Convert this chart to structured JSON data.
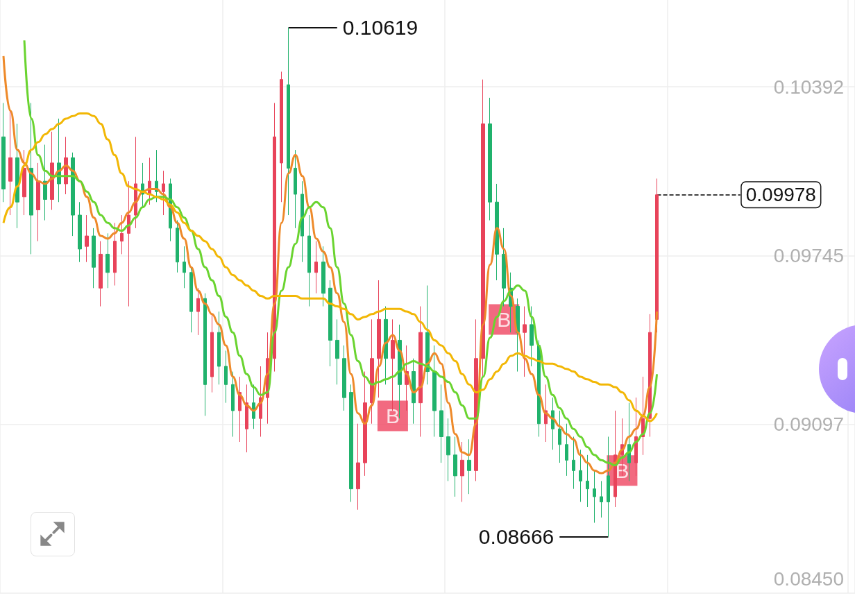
{
  "chart_data": {
    "type": "candlestick",
    "categories": [
      null,
      null,
      null,
      null,
      null,
      null,
      null,
      null,
      null,
      null,
      null,
      null,
      null,
      null,
      null,
      null,
      null,
      null,
      null,
      null,
      null,
      null,
      null,
      null,
      null,
      null,
      null,
      null,
      null,
      null,
      null,
      null,
      null,
      null,
      null,
      null,
      null,
      null,
      null,
      null,
      null,
      null,
      null,
      null,
      null,
      null,
      null,
      null,
      null,
      null,
      null,
      null,
      null,
      null,
      null,
      null,
      null,
      null,
      null,
      null,
      null,
      null,
      null,
      null,
      null,
      null,
      null,
      null,
      null,
      null,
      null,
      null,
      null,
      null,
      null,
      null,
      null,
      null,
      null,
      null,
      null,
      null,
      null,
      null,
      null,
      null,
      null,
      null,
      null,
      null,
      null,
      null,
      null,
      null,
      null
    ],
    "colors": [
      "#20b26c",
      "#e8435a",
      "#20b26c",
      "#e8435a",
      "#20b26c",
      "#e8435a",
      "#20b26c",
      "#e8435a",
      "#20b26c",
      "#e8435a",
      "#20b26c",
      "#20b26c",
      "#e8435a",
      "#20b26c",
      "#e8435a",
      "#20b26c",
      "#e8435a",
      "#e8435a",
      "#e8435a",
      "#e8435a",
      "#20b26c",
      "#e8435a",
      "#20b26c",
      "#e8435a",
      "#20b26c",
      "#20b26c",
      "#20b26c",
      "#20b26c",
      "#e8435a",
      "#20b26c",
      "#e8435a",
      "#20b26c",
      "#20b26c",
      "#20b26c",
      "#e8435a",
      "#e8435a",
      "#20b26c",
      "#e8435a",
      "#e8435a",
      "#e8435a",
      "#e8435a",
      "#20b26c",
      "#20b26c",
      "#20b26c",
      "#20b26c",
      "#e8435a",
      "#20b26c",
      "#20b26c",
      "#20b26c",
      "#20b26c",
      "#20b26c",
      "#e8435a",
      "#e8435a",
      "#e8435a",
      "#e8435a",
      "#20b26c",
      "#e8435a",
      "#20b26c",
      "#e8435a",
      "#20b26c",
      "#e8435a",
      "#20b26c",
      "#20b26c",
      "#20b26c",
      "#20b26c",
      "#20b26c",
      "#e8435a",
      "#20b26c",
      "#e8435a",
      "#e8435a",
      "#20b26c",
      "#20b26c",
      "#20b26c",
      "#20b26c",
      "#20b26c",
      "#e8435a",
      "#20b26c",
      "#20b26c",
      "#e8435a",
      "#20b26c",
      "#20b26c",
      "#20b26c",
      "#20b26c",
      "#20b26c",
      "#20b26c",
      "#20b26c",
      "#20b26c",
      "#20b26c",
      "#e8435a",
      "#e8435a",
      "#20b26c",
      "#e8435a",
      "#e8435a",
      "#e8435a",
      "#e8435a"
    ],
    "ohlc": [
      [
        0.102,
        0.1033,
        0.0995,
        0.1
      ],
      [
        0.1003,
        0.103,
        0.099,
        0.1012
      ],
      [
        0.1012,
        0.1025,
        0.0985,
        0.0995
      ],
      [
        0.0997,
        0.1015,
        0.099,
        0.1008
      ],
      [
        0.1008,
        0.1033,
        0.0975,
        0.099
      ],
      [
        0.0992,
        0.101,
        0.098,
        0.1003
      ],
      [
        0.1003,
        0.1017,
        0.0988,
        0.0996
      ],
      [
        0.0996,
        0.1022,
        0.0992,
        0.101
      ],
      [
        0.101,
        0.1027,
        0.0995,
        0.1002
      ],
      [
        0.1002,
        0.102,
        0.0998,
        0.1012
      ],
      [
        0.1012,
        0.1014,
        0.0982,
        0.099
      ],
      [
        0.099,
        0.0995,
        0.0972,
        0.0977
      ],
      [
        0.0978,
        0.099,
        0.0972,
        0.0982
      ],
      [
        0.0982,
        0.0985,
        0.0962,
        0.097
      ],
      [
        0.0962,
        0.098,
        0.0955,
        0.0975
      ],
      [
        0.0975,
        0.0983,
        0.0962,
        0.0968
      ],
      [
        0.0968,
        0.0987,
        0.0963,
        0.098
      ],
      [
        0.098,
        0.099,
        0.0975,
        0.0983
      ],
      [
        0.0983,
        0.1003,
        0.0955,
        0.099
      ],
      [
        0.099,
        0.102,
        0.0985,
        0.1002
      ],
      [
        0.1002,
        0.101,
        0.0993,
        0.0998
      ],
      [
        0.0998,
        0.1012,
        0.0994,
        0.1003
      ],
      [
        0.1003,
        0.1015,
        0.0995,
        0.0999
      ],
      [
        0.0999,
        0.1007,
        0.099,
        0.1002
      ],
      [
        0.1002,
        0.1004,
        0.098,
        0.0985
      ],
      [
        0.0985,
        0.0988,
        0.0968,
        0.0972
      ],
      [
        0.0972,
        0.0978,
        0.0962,
        0.0968
      ],
      [
        0.0968,
        0.097,
        0.0945,
        0.0953
      ],
      [
        0.0953,
        0.0962,
        0.0944,
        0.0958
      ],
      [
        0.0958,
        0.096,
        0.0913,
        0.0925
      ],
      [
        0.0928,
        0.0952,
        0.0922,
        0.0945
      ],
      [
        0.0945,
        0.0953,
        0.0925,
        0.0932
      ],
      [
        0.0932,
        0.0938,
        0.0918,
        0.0925
      ],
      [
        0.0925,
        0.093,
        0.0905,
        0.0915
      ],
      [
        0.0915,
        0.0928,
        0.0903,
        0.0922
      ],
      [
        0.0908,
        0.0925,
        0.0899,
        0.0918
      ],
      [
        0.0918,
        0.0925,
        0.0908,
        0.0912
      ],
      [
        0.0912,
        0.0932,
        0.0905,
        0.092
      ],
      [
        0.092,
        0.0945,
        0.091,
        0.0935
      ],
      [
        0.0935,
        0.1033,
        0.093,
        0.102
      ],
      [
        0.101,
        0.1045,
        0.0995,
        0.1042
      ],
      [
        0.104,
        0.10619,
        0.099,
        0.1008
      ],
      [
        0.1008,
        0.1015,
        0.0985,
        0.0998
      ],
      [
        0.0998,
        0.1003,
        0.0972,
        0.0982
      ],
      [
        0.0982,
        0.099,
        0.0955,
        0.0968
      ],
      [
        0.0968,
        0.098,
        0.096,
        0.0972
      ],
      [
        0.0972,
        0.0978,
        0.0955,
        0.096
      ],
      [
        0.0962,
        0.0965,
        0.0932,
        0.0942
      ],
      [
        0.0942,
        0.095,
        0.0925,
        0.0935
      ],
      [
        0.0935,
        0.094,
        0.0915,
        0.092
      ],
      [
        0.0922,
        0.0925,
        0.088,
        0.0885
      ],
      [
        0.0885,
        0.091,
        0.0877,
        0.0895
      ],
      [
        0.0895,
        0.093,
        0.089,
        0.0918
      ],
      [
        0.0918,
        0.095,
        0.091,
        0.0935
      ],
      [
        0.0935,
        0.0965,
        0.092,
        0.095
      ],
      [
        0.095,
        0.0955,
        0.0925,
        0.0935
      ],
      [
        0.0935,
        0.095,
        0.0915,
        0.0942
      ],
      [
        0.0942,
        0.0948,
        0.0912,
        0.0925
      ],
      [
        0.0925,
        0.094,
        0.0915,
        0.093
      ],
      [
        0.093,
        0.0935,
        0.091,
        0.0918
      ],
      [
        0.0918,
        0.0955,
        0.0905,
        0.0945
      ],
      [
        0.0945,
        0.0963,
        0.0925,
        0.093
      ],
      [
        0.093,
        0.094,
        0.0905,
        0.0915
      ],
      [
        0.0915,
        0.0925,
        0.0895,
        0.0905
      ],
      [
        0.0905,
        0.0912,
        0.0888,
        0.0898
      ],
      [
        0.0898,
        0.0905,
        0.0882,
        0.089
      ],
      [
        0.089,
        0.0903,
        0.088,
        0.0896
      ],
      [
        0.0896,
        0.0904,
        0.0883,
        0.0892
      ],
      [
        0.0892,
        0.095,
        0.0888,
        0.0935
      ],
      [
        0.0935,
        0.1042,
        0.0928,
        0.1025
      ],
      [
        0.1025,
        0.1035,
        0.0988,
        0.0995
      ],
      [
        0.0995,
        0.1002,
        0.0965,
        0.0975
      ],
      [
        0.0975,
        0.0985,
        0.0955,
        0.0962
      ],
      [
        0.0962,
        0.0968,
        0.0945,
        0.0955
      ],
      [
        0.0955,
        0.0958,
        0.093,
        0.0945
      ],
      [
        0.0945,
        0.0955,
        0.0928,
        0.0948
      ],
      [
        0.0948,
        0.0955,
        0.0932,
        0.094
      ],
      [
        0.094,
        0.0942,
        0.0905,
        0.091
      ],
      [
        0.091,
        0.0925,
        0.0903,
        0.0915
      ],
      [
        0.0915,
        0.092,
        0.09,
        0.0908
      ],
      [
        0.0908,
        0.0915,
        0.0895,
        0.0902
      ],
      [
        0.0902,
        0.091,
        0.089,
        0.0896
      ],
      [
        0.0896,
        0.0905,
        0.0885,
        0.0892
      ],
      [
        0.0892,
        0.09,
        0.088,
        0.0888
      ],
      [
        0.0888,
        0.0898,
        0.0878,
        0.0885
      ],
      [
        0.0885,
        0.0892,
        0.0872,
        0.0882
      ],
      [
        0.0882,
        0.0888,
        0.0874,
        0.088
      ],
      [
        0.089,
        0.0905,
        0.08666,
        0.088
      ],
      [
        0.0882,
        0.0915,
        0.0878,
        0.0898
      ],
      [
        0.0898,
        0.0912,
        0.089,
        0.0902
      ],
      [
        0.0902,
        0.0918,
        0.0888,
        0.0895
      ],
      [
        0.0895,
        0.092,
        0.089,
        0.0905
      ],
      [
        0.0905,
        0.0928,
        0.0898,
        0.0912
      ],
      [
        0.0912,
        0.0952,
        0.0905,
        0.0945
      ],
      [
        0.095,
        0.1004,
        0.0945,
        0.09978
      ]
    ],
    "series": [
      {
        "type": "line",
        "color": "#ee8a2a",
        "marker": "none",
        "values": [
          0.1051,
          0.103,
          0.1015,
          0.101,
          0.1006,
          0.1003,
          0.1002,
          0.1004,
          0.1007,
          0.1009,
          0.1007,
          0.1003,
          0.0997,
          0.0989,
          0.0982,
          0.0981,
          0.0983,
          0.0987,
          0.0991,
          0.0995,
          0.0999,
          0.1,
          0.1,
          0.0998,
          0.0993,
          0.0987,
          0.0981,
          0.097,
          0.0961,
          0.0956,
          0.0952,
          0.0948,
          0.094,
          0.0928,
          0.0921,
          0.0917,
          0.0915,
          0.0918,
          0.0929,
          0.0956,
          0.0987,
          0.1006,
          0.1013,
          0.1005,
          0.0993,
          0.0981,
          0.0976,
          0.097,
          0.096,
          0.0949,
          0.0929,
          0.0914,
          0.091,
          0.0917,
          0.0932,
          0.0941,
          0.0944,
          0.0938,
          0.0929,
          0.0922,
          0.0924,
          0.0933,
          0.0937,
          0.0933,
          0.0918,
          0.0906,
          0.0899,
          0.0898,
          0.091,
          0.0948,
          0.0971,
          0.0985,
          0.0977,
          0.0959,
          0.0945,
          0.0935,
          0.0929,
          0.0921,
          0.0914,
          0.0912,
          0.0909,
          0.0906,
          0.0904,
          0.0898,
          0.0895,
          0.0892,
          0.0891,
          0.0892,
          0.0895,
          0.09,
          0.0905,
          0.0908,
          0.0913,
          0.0924,
          0.0953
        ]
      },
      {
        "type": "line",
        "color": "#6ad430",
        "marker": "none",
        "values": [
          null,
          null,
          null,
          0.1057,
          0.1027,
          0.1013,
          0.1007,
          0.1005,
          0.1005,
          0.1005,
          0.1005,
          0.1003,
          0.0999,
          0.0995,
          0.099,
          0.0987,
          0.0985,
          0.0984,
          0.0986,
          0.0989,
          0.0993,
          0.0996,
          0.0997,
          0.0997,
          0.0996,
          0.0993,
          0.0989,
          0.0984,
          0.0977,
          0.097,
          0.0965,
          0.0959,
          0.0951,
          0.0945,
          0.0936,
          0.0929,
          0.0924,
          0.0921,
          0.0922,
          0.0945,
          0.0961,
          0.097,
          0.0979,
          0.0989,
          0.0993,
          0.0995,
          0.0993,
          0.0985,
          0.097,
          0.0956,
          0.0944,
          0.0934,
          0.0928,
          0.0925,
          0.0926,
          0.0927,
          0.0928,
          0.093,
          0.0933,
          0.0934,
          0.0933,
          0.0932,
          0.093,
          0.0928,
          0.0926,
          0.0922,
          0.0917,
          0.0912,
          0.0912,
          0.0928,
          0.0943,
          0.0951,
          0.0957,
          0.0961,
          0.0963,
          0.0961,
          0.0951,
          0.094,
          0.0928,
          0.0921,
          0.0916,
          0.0912,
          0.0908,
          0.0905,
          0.0901,
          0.0898,
          0.0896,
          0.0895,
          0.0894,
          0.0897,
          0.0899,
          0.0903,
          0.0906,
          0.0914,
          0.0929
        ]
      },
      {
        "type": "line",
        "color": "#f2b705",
        "marker": "none",
        "values": [
          0.0987,
          0.0993,
          0.1001,
          0.1009,
          0.1015,
          0.1018,
          0.1021,
          0.1023,
          0.1025,
          0.1027,
          0.1028,
          0.1029,
          0.1029,
          0.1028,
          0.1025,
          0.1019,
          0.1013,
          0.1006,
          0.1001,
          0.1,
          0.0999,
          0.0998,
          0.0997,
          0.0996,
          0.0994,
          0.0991,
          0.0987,
          0.0984,
          0.0982,
          0.098,
          0.0977,
          0.0974,
          0.097,
          0.0967,
          0.0965,
          0.0963,
          0.0961,
          0.0959,
          0.0958,
          0.0959,
          0.0959,
          0.0959,
          0.0959,
          0.0958,
          0.0958,
          0.0958,
          0.0958,
          0.0956,
          0.0955,
          0.0954,
          0.0952,
          0.095,
          0.0951,
          0.0952,
          0.0953,
          0.0954,
          0.0954,
          0.0954,
          0.0953,
          0.0952,
          0.0949,
          0.0946,
          0.0942,
          0.094,
          0.0937,
          0.0934,
          0.0929,
          0.0925,
          0.0922,
          0.0923,
          0.0927,
          0.093,
          0.0933,
          0.0936,
          0.0937,
          0.0936,
          0.0935,
          0.0934,
          0.0933,
          0.0933,
          0.0932,
          0.0931,
          0.093,
          0.0928,
          0.0927,
          0.0926,
          0.0925,
          0.0925,
          0.0924,
          0.0922,
          0.0919,
          0.0915,
          0.0913,
          0.0911,
          0.0914
        ]
      },
      {
        "type": "scatter",
        "color": "#ef4560",
        "marker": "square",
        "values": [
          null,
          null,
          null,
          null,
          null,
          null,
          null,
          null,
          null,
          null,
          null,
          null,
          null,
          null,
          null,
          null,
          null,
          null,
          null,
          null,
          null,
          null,
          null,
          null,
          null,
          null,
          null,
          null,
          null,
          null,
          null,
          null,
          null,
          null,
          null,
          null,
          null,
          null,
          null,
          null,
          null,
          null,
          null,
          null,
          null,
          null,
          null,
          null,
          null,
          null,
          null,
          null,
          null,
          null,
          null,
          null,
          0.0913,
          null,
          null,
          null,
          null,
          null,
          null,
          null,
          null,
          null,
          null,
          null,
          null,
          null,
          null,
          null,
          0.095,
          null,
          null,
          null,
          null,
          null,
          null,
          null,
          null,
          null,
          null,
          null,
          null,
          null,
          null,
          null,
          null,
          0.0892,
          null,
          null,
          null,
          null,
          null
        ],
        "value_labels": [
          null,
          null,
          null,
          null,
          null,
          null,
          null,
          null,
          null,
          null,
          null,
          null,
          null,
          null,
          null,
          null,
          null,
          null,
          null,
          null,
          null,
          null,
          null,
          null,
          null,
          null,
          null,
          null,
          null,
          null,
          null,
          null,
          null,
          null,
          null,
          null,
          null,
          null,
          null,
          null,
          null,
          null,
          null,
          null,
          null,
          null,
          null,
          null,
          null,
          null,
          null,
          null,
          null,
          null,
          null,
          null,
          "B",
          null,
          null,
          null,
          null,
          null,
          null,
          null,
          null,
          null,
          null,
          null,
          null,
          null,
          null,
          null,
          "B",
          null,
          null,
          null,
          null,
          null,
          null,
          null,
          null,
          null,
          null,
          null,
          null,
          null,
          null,
          null,
          null,
          "B",
          null,
          null,
          null,
          null,
          null
        ]
      }
    ],
    "ylim": [
      0.0845,
      0.10725
    ],
    "yticks": [
      {
        "value": 0.0845,
        "label": "0.08450"
      },
      0.09097,
      0.09745,
      0.10392
    ],
    "grid": true,
    "tick_labels": "y",
    "annotations": [
      "0.10619",
      "0.08666"
    ],
    "ref_lines": [
      {
        "axis": "y",
        "value": 0.09978,
        "label": "0.09978",
        "line_style": "dashed",
        "color": "#000000"
      }
    ]
  }
}
